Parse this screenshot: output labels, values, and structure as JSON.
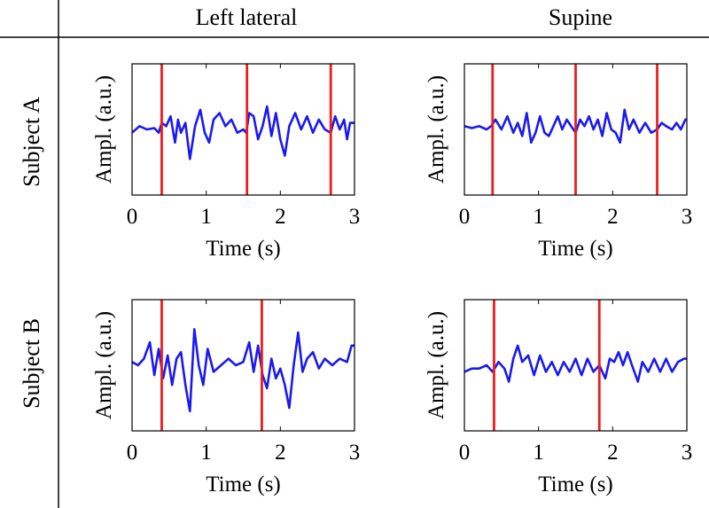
{
  "column_headers": [
    "Left lateral",
    "Supine"
  ],
  "row_headers": [
    "Subject A",
    "Subject B"
  ],
  "colors": {
    "signal": "#1a1aee",
    "marker": "#ee1c1c",
    "axis": "#000000"
  },
  "chart_data": [
    {
      "type": "line",
      "subject": "Subject A",
      "posture": "Left lateral",
      "xlabel": "Time (s)",
      "ylabel": "Ampl. (a.u.)",
      "xlim": [
        0,
        3
      ],
      "ylim": [
        -1,
        1
      ],
      "xticks": [
        0,
        1,
        2,
        3
      ],
      "yticks_shown": false,
      "vlines": [
        0.4,
        1.55,
        2.68
      ],
      "series": [
        {
          "x": [
            0,
            0.1,
            0.2,
            0.3,
            0.36,
            0.4,
            0.46,
            0.52,
            0.58,
            0.62,
            0.66,
            0.72,
            0.78,
            0.85,
            0.92,
            0.98,
            1.04,
            1.1,
            1.18,
            1.26,
            1.34,
            1.42,
            1.5,
            1.54,
            1.58,
            1.64,
            1.7,
            1.76,
            1.82,
            1.88,
            1.94,
            2.0,
            2.06,
            2.12,
            2.2,
            2.28,
            2.36,
            2.44,
            2.52,
            2.6,
            2.68,
            2.74,
            2.8,
            2.86,
            2.9,
            2.94,
            3.0
          ],
          "y": [
            -0.05,
            0.05,
            0.0,
            0.02,
            -0.05,
            0.1,
            0.05,
            0.2,
            -0.2,
            0.15,
            -0.05,
            0.1,
            -0.45,
            0.05,
            0.3,
            -0.05,
            -0.2,
            0.15,
            0.25,
            0.05,
            0.15,
            -0.05,
            0.0,
            -0.05,
            0.25,
            0.2,
            -0.15,
            0.05,
            0.35,
            -0.1,
            0.25,
            -0.15,
            -0.4,
            0.05,
            0.25,
            0.0,
            0.2,
            -0.05,
            0.15,
            0.0,
            -0.05,
            0.2,
            0.0,
            0.15,
            -0.15,
            0.1,
            0.1
          ]
        }
      ]
    },
    {
      "type": "line",
      "subject": "Subject A",
      "posture": "Supine",
      "xlabel": "Time (s)",
      "ylabel": "Ampl. (a.u.)",
      "xlim": [
        0,
        3
      ],
      "ylim": [
        -1,
        1
      ],
      "xticks": [
        0,
        1,
        2,
        3
      ],
      "yticks_shown": false,
      "vlines": [
        0.38,
        1.5,
        2.6
      ],
      "series": [
        {
          "x": [
            0,
            0.1,
            0.2,
            0.3,
            0.36,
            0.42,
            0.5,
            0.58,
            0.66,
            0.72,
            0.78,
            0.84,
            0.9,
            0.96,
            1.02,
            1.08,
            1.14,
            1.2,
            1.26,
            1.32,
            1.38,
            1.44,
            1.5,
            1.56,
            1.62,
            1.68,
            1.74,
            1.8,
            1.86,
            1.92,
            1.98,
            2.04,
            2.1,
            2.16,
            2.22,
            2.28,
            2.36,
            2.44,
            2.52,
            2.6,
            2.66,
            2.72,
            2.8,
            2.86,
            2.92,
            2.98,
            3.0
          ],
          "y": [
            0.05,
            0.02,
            0.05,
            0.0,
            0.05,
            0.15,
            0.0,
            0.2,
            -0.05,
            0.1,
            -0.1,
            0.25,
            -0.2,
            -0.05,
            0.2,
            -0.05,
            -0.1,
            0.05,
            0.2,
            0.0,
            0.15,
            0.05,
            -0.05,
            0.15,
            0.05,
            0.2,
            0.0,
            0.15,
            -0.1,
            0.25,
            0.0,
            -0.05,
            -0.2,
            0.3,
            0.0,
            0.15,
            -0.05,
            0.1,
            -0.05,
            0.0,
            0.1,
            0.05,
            0.0,
            0.1,
            0.0,
            0.15,
            0.15
          ]
        }
      ]
    },
    {
      "type": "line",
      "subject": "Subject B",
      "posture": "Left lateral",
      "xlabel": "Time (s)",
      "ylabel": "Ampl. (a.u.)",
      "xlim": [
        0,
        3
      ],
      "ylim": [
        -1,
        1
      ],
      "xticks": [
        0,
        1,
        2,
        3
      ],
      "yticks_shown": false,
      "vlines": [
        0.4,
        1.75
      ],
      "series": [
        {
          "x": [
            0,
            0.08,
            0.16,
            0.24,
            0.3,
            0.36,
            0.42,
            0.48,
            0.54,
            0.6,
            0.66,
            0.72,
            0.78,
            0.84,
            0.9,
            0.96,
            1.02,
            1.1,
            1.2,
            1.3,
            1.4,
            1.5,
            1.58,
            1.64,
            1.7,
            1.76,
            1.82,
            1.88,
            1.94,
            2.0,
            2.06,
            2.12,
            2.18,
            2.24,
            2.3,
            2.36,
            2.44,
            2.52,
            2.6,
            2.7,
            2.8,
            2.9,
            2.96,
            3.0
          ],
          "y": [
            0.05,
            0.0,
            0.1,
            0.35,
            -0.15,
            0.25,
            -0.2,
            0.15,
            -0.3,
            0.1,
            0.2,
            -0.3,
            -0.7,
            0.55,
            0.0,
            -0.3,
            0.25,
            -0.1,
            0.0,
            0.1,
            0.0,
            0.05,
            0.35,
            -0.1,
            0.3,
            -0.15,
            -0.35,
            0.1,
            -0.2,
            -0.05,
            -0.3,
            -0.65,
            0.0,
            0.5,
            -0.1,
            0.1,
            0.2,
            -0.05,
            0.1,
            0.0,
            0.1,
            0.05,
            0.3,
            0.3
          ]
        }
      ]
    },
    {
      "type": "line",
      "subject": "Subject B",
      "posture": "Supine",
      "xlabel": "Time (s)",
      "ylabel": "Ampl. (a.u.)",
      "xlim": [
        0,
        3
      ],
      "ylim": [
        -1,
        1
      ],
      "xticks": [
        0,
        1,
        2,
        3
      ],
      "yticks_shown": false,
      "vlines": [
        0.4,
        1.82
      ],
      "series": [
        {
          "x": [
            0,
            0.1,
            0.2,
            0.3,
            0.38,
            0.46,
            0.54,
            0.6,
            0.66,
            0.72,
            0.78,
            0.86,
            0.94,
            1.02,
            1.1,
            1.18,
            1.26,
            1.34,
            1.42,
            1.5,
            1.58,
            1.66,
            1.74,
            1.82,
            1.9,
            1.96,
            2.02,
            2.08,
            2.14,
            2.2,
            2.26,
            2.34,
            2.4,
            2.48,
            2.56,
            2.64,
            2.72,
            2.8,
            2.88,
            2.96,
            3.0
          ],
          "y": [
            -0.1,
            -0.05,
            -0.05,
            0.0,
            -0.1,
            0.05,
            -0.05,
            -0.25,
            0.1,
            0.3,
            0.05,
            0.15,
            -0.15,
            0.15,
            -0.1,
            0.05,
            -0.15,
            0.05,
            -0.1,
            0.1,
            -0.15,
            0.1,
            -0.1,
            0.0,
            -0.2,
            0.1,
            0.05,
            0.2,
            0.0,
            0.2,
            0.0,
            -0.25,
            0.05,
            -0.1,
            0.1,
            -0.1,
            0.1,
            -0.1,
            0.05,
            0.1,
            0.1
          ]
        }
      ]
    }
  ]
}
